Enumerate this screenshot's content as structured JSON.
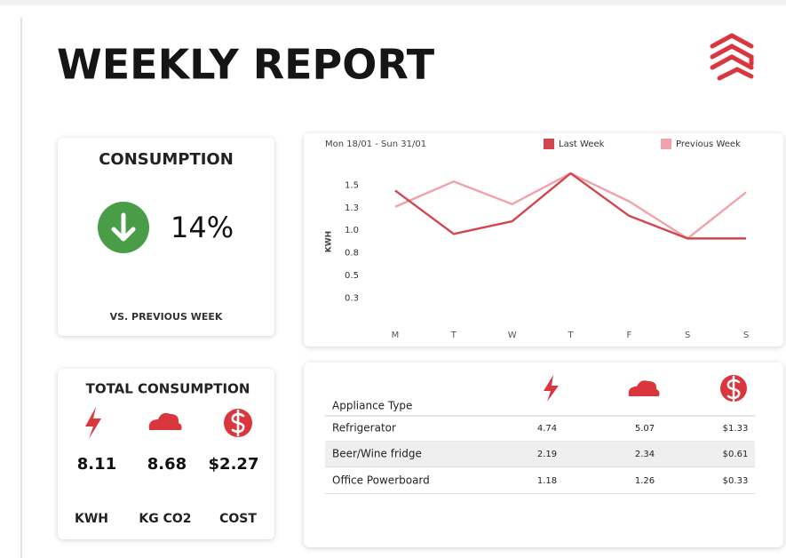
{
  "header": {
    "title": "WEEKLY REPORT"
  },
  "consumption": {
    "title": "CONSUMPTION",
    "value": "14%",
    "caption": "VS. PREVIOUS WEEK"
  },
  "total": {
    "title": "TOTAL CONSUMPTION",
    "items": [
      {
        "value": "8.11",
        "unit": "KWH"
      },
      {
        "value": "8.68",
        "unit": "KG CO2"
      },
      {
        "value": "$2.27",
        "unit": "COST"
      }
    ]
  },
  "chart_data": {
    "type": "line",
    "subtitle": "Mon 18/01 - Sun 31/01",
    "y_label": "KWH",
    "categories": [
      "M",
      "T",
      "W",
      "T",
      "F",
      "S",
      "S"
    ],
    "series": [
      {
        "name": "Last Week",
        "color": "#d2474f",
        "values": [
          1.44,
          0.96,
          1.1,
          1.63,
          1.16,
          0.91,
          0.91
        ]
      },
      {
        "name": "Previous Week",
        "color": "#f2a2aa",
        "values": [
          1.26,
          1.54,
          1.29,
          1.63,
          1.32,
          0.91,
          1.42
        ]
      }
    ],
    "ylim": [
      0,
      1.68
    ],
    "yticks": [
      1.5,
      {
        "value": 1.25,
        "label": "1.3"
      },
      {
        "value": 1.0,
        "label": "1.0"
      },
      {
        "value": 0.75,
        "label": "0.8"
      },
      0.5,
      {
        "value": 0.25,
        "label": "0.3"
      }
    ],
    "grid": false,
    "legend": "top-right"
  },
  "table": {
    "header": [
      "Appliance Type"
    ],
    "rows": [
      [
        "Refrigerator",
        "4.74",
        "5.07",
        "$1.33"
      ],
      [
        "Beer/Wine fridge",
        "2.19",
        "2.34",
        "$0.61"
      ],
      [
        "Office Powerboard",
        "1.18",
        "1.26",
        "$0.33"
      ]
    ]
  }
}
